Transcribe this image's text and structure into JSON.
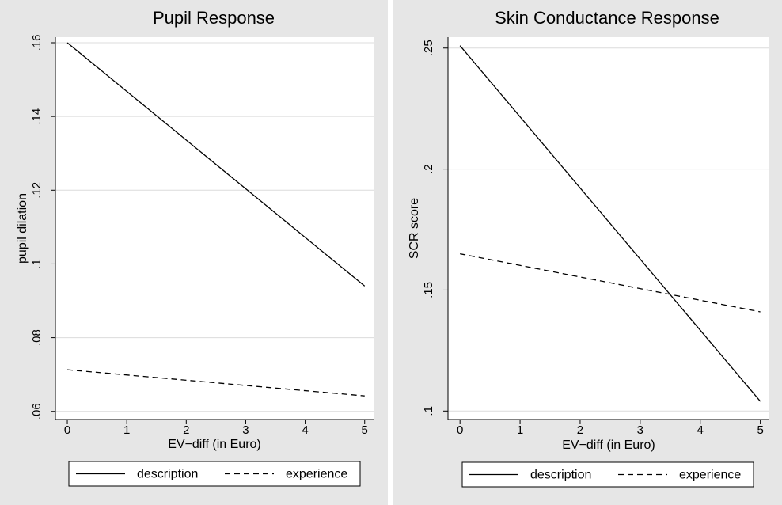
{
  "colors": {
    "panel_background": "#e6e6e6",
    "plot_background": "#ffffff",
    "gridline": "#dcdcdc",
    "axis": "#000000",
    "line": "#000000",
    "legend_background": "#ffffff"
  },
  "chart_data": [
    {
      "type": "line",
      "title": "Pupil Response",
      "xlabel": "EV−diff (in Euro)",
      "ylabel": "pupil dilation",
      "xlim": [
        -0.2,
        5.15
      ],
      "ylim": [
        0.0578,
        0.1615
      ],
      "x_ticks": [
        0,
        1,
        2,
        3,
        4,
        5
      ],
      "x_tick_labels": [
        "0",
        "1",
        "2",
        "3",
        "4",
        "5"
      ],
      "y_ticks": [
        0.06,
        0.08,
        0.1,
        0.12,
        0.14,
        0.16
      ],
      "y_tick_labels": [
        ".06",
        ".08",
        ".1",
        ".12",
        ".14",
        ".16"
      ],
      "grid": true,
      "legend_position": "bottom",
      "series": [
        {
          "name": "description",
          "style": "solid",
          "x": [
            0,
            5
          ],
          "values": [
            0.16,
            0.094
          ]
        },
        {
          "name": "experience",
          "style": "dashed",
          "x": [
            0,
            5
          ],
          "values": [
            0.0713,
            0.0642
          ]
        }
      ]
    },
    {
      "type": "line",
      "title": "Skin Conductance Response",
      "xlabel": "EV−diff (in Euro)",
      "ylabel": "SCR score",
      "xlim": [
        -0.2,
        5.15
      ],
      "ylim": [
        0.0965,
        0.2545
      ],
      "x_ticks": [
        0,
        1,
        2,
        3,
        4,
        5
      ],
      "x_tick_labels": [
        "0",
        "1",
        "2",
        "3",
        "4",
        "5"
      ],
      "y_ticks": [
        0.1,
        0.15,
        0.2,
        0.25
      ],
      "y_tick_labels": [
        ".1",
        ".15",
        ".2",
        ".25"
      ],
      "grid": true,
      "legend_position": "bottom",
      "series": [
        {
          "name": "description",
          "style": "solid",
          "x": [
            0,
            5
          ],
          "values": [
            0.251,
            0.104
          ]
        },
        {
          "name": "experience",
          "style": "dashed",
          "x": [
            0,
            5
          ],
          "values": [
            0.165,
            0.141
          ]
        }
      ]
    }
  ]
}
